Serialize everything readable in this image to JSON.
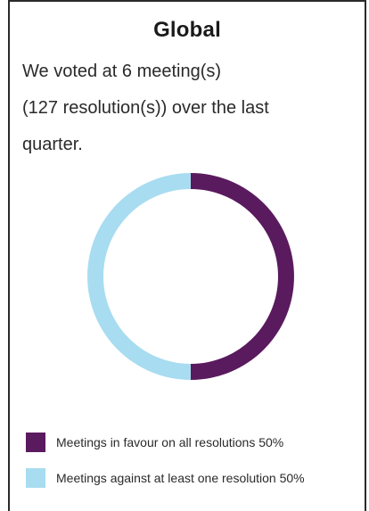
{
  "card": {
    "title": "Global",
    "summary_line1": "We voted at 6 meeting(s)",
    "summary_line2": "(127 resolution(s)) over the last",
    "summary_line3": "quarter."
  },
  "colors": {
    "favour": "#5a1a5e",
    "against": "#a8dcf0"
  },
  "chart_data": {
    "type": "pie",
    "style": "donut",
    "title": "",
    "categories": [
      "Meetings in favour on all resolutions",
      "Meetings against at least one resolution"
    ],
    "values": [
      50,
      50
    ],
    "unit": "%",
    "legend_placement": "bottom",
    "legend": [
      {
        "label": "Meetings in favour on all resolutions 50%",
        "color": "#5a1a5e"
      },
      {
        "label": "Meetings against at least one resolution 50%",
        "color": "#a8dcf0"
      }
    ]
  }
}
